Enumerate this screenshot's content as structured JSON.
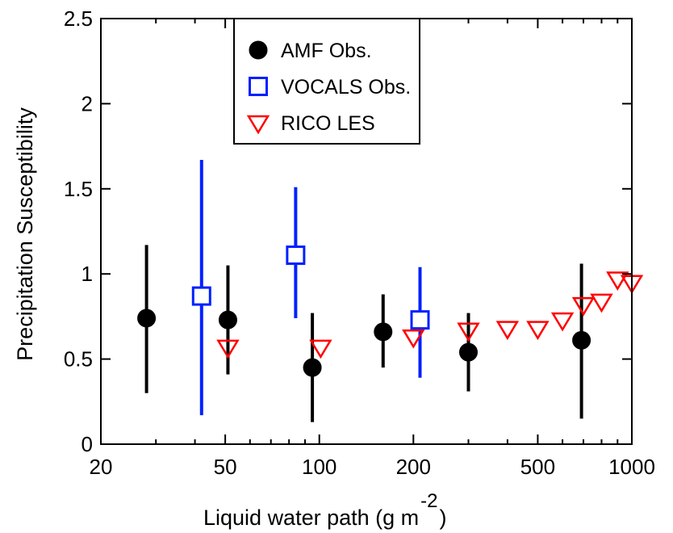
{
  "chart_data": {
    "type": "scatter",
    "xlabel": "Liquid water path (g m",
    "xlabel_superscript": "-2",
    "xlabel_close": ")",
    "ylabel": "Precipitation Susceptibility",
    "xscale": "log",
    "xlim": [
      20,
      1000
    ],
    "ylim": [
      0,
      2.5
    ],
    "xticks": [
      20,
      50,
      100,
      200,
      500,
      1000
    ],
    "xtick_labels": [
      "20",
      "50",
      "100",
      "200",
      "500",
      "1000"
    ],
    "yticks": [
      0,
      0.5,
      1,
      1.5,
      2,
      2.5
    ],
    "ytick_labels": [
      "0",
      "0.5",
      "1",
      "1.5",
      "2",
      "2.5"
    ],
    "grid": false,
    "legend_position": "top-center",
    "series": [
      {
        "name": "AMF Obs.",
        "marker": "filled-circle",
        "color": "#000000",
        "points": [
          {
            "x": 28,
            "y": 0.74,
            "ylow": 0.3,
            "yhigh": 1.17
          },
          {
            "x": 51,
            "y": 0.73,
            "ylow": 0.41,
            "yhigh": 1.05
          },
          {
            "x": 95,
            "y": 0.45,
            "ylow": 0.13,
            "yhigh": 0.77
          },
          {
            "x": 160,
            "y": 0.66,
            "ylow": 0.45,
            "yhigh": 0.88
          },
          {
            "x": 300,
            "y": 0.54,
            "ylow": 0.31,
            "yhigh": 0.77
          },
          {
            "x": 690,
            "y": 0.61,
            "ylow": 0.15,
            "yhigh": 1.06
          }
        ]
      },
      {
        "name": "VOCALS Obs.",
        "marker": "open-square",
        "color": "#0020ff",
        "points": [
          {
            "x": 42,
            "y": 0.87,
            "ylow": 0.17,
            "yhigh": 1.67
          },
          {
            "x": 84,
            "y": 1.11,
            "ylow": 0.74,
            "yhigh": 1.51
          },
          {
            "x": 210,
            "y": 0.73,
            "ylow": 0.39,
            "yhigh": 1.04
          }
        ]
      },
      {
        "name": "RICO LES",
        "marker": "open-triangle-down",
        "color": "#ff0000",
        "points": [
          {
            "x": 51,
            "y": 0.57
          },
          {
            "x": 101,
            "y": 0.57
          },
          {
            "x": 200,
            "y": 0.63
          },
          {
            "x": 300,
            "y": 0.67
          },
          {
            "x": 400,
            "y": 0.68
          },
          {
            "x": 500,
            "y": 0.68
          },
          {
            "x": 600,
            "y": 0.73
          },
          {
            "x": 700,
            "y": 0.82
          },
          {
            "x": 800,
            "y": 0.84
          },
          {
            "x": 900,
            "y": 0.97
          },
          {
            "x": 1000,
            "y": 0.95
          }
        ]
      }
    ]
  }
}
